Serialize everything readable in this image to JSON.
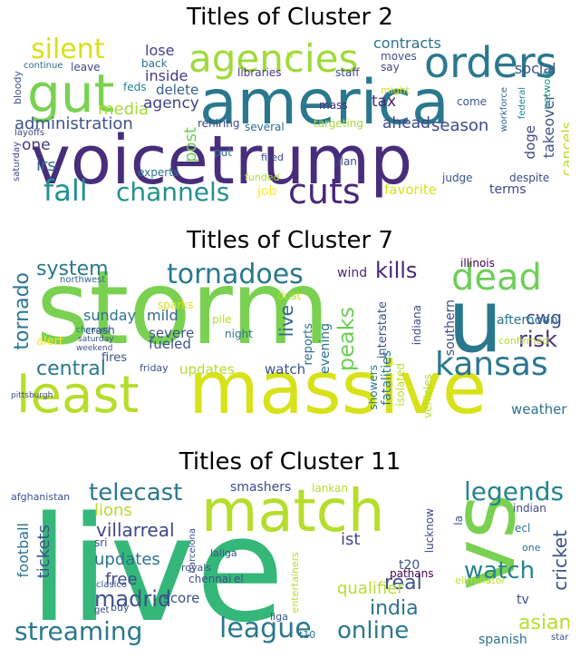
{
  "clusters": [
    {
      "title": "Titles of Cluster 2",
      "words": [
        "america",
        "voicetrump",
        "gut",
        "agencies",
        "orders",
        "silent",
        "cuts",
        "channels",
        "fall",
        "administration",
        "media",
        "agency",
        "inside",
        "delete",
        "post",
        "lose",
        "contracts",
        "social",
        "season",
        "takeover",
        "cancels",
        "doge",
        "network",
        "federal",
        "workforce",
        "tax",
        "ahead",
        "irs",
        "one",
        "several",
        "rehiring",
        "targeting",
        "fired",
        "funded",
        "experts",
        "job",
        "terms",
        "despite",
        "judge",
        "plan",
        "favorite",
        "moves",
        "say",
        "might",
        "come",
        "mass",
        "staff",
        "libraries",
        "back",
        "feds",
        "leave",
        "continue",
        "bloody",
        "layoffs",
        "saturday",
        "put",
        "u"
      ]
    },
    {
      "title": "Titles of Cluster 7",
      "words": [
        "storm",
        "massive",
        "least",
        "u",
        "dead",
        "kansas",
        "tornadoes",
        "system",
        "kills",
        "tornado",
        "risk",
        "central",
        "peaks",
        "cwg",
        "live",
        "sunday",
        "mild",
        "severe",
        "fueled",
        "updates",
        "watch",
        "sparks",
        "crash",
        "alert",
        "fires",
        "dust",
        "pile",
        "night",
        "evening",
        "reports",
        "interstate",
        "fatalities",
        "indiana",
        "southern",
        "afternoon",
        "isolated",
        "vehicles",
        "showers",
        "weather",
        "confirmed",
        "wind",
        "illinois",
        "northwest",
        "chances",
        "saturday",
        "weekend",
        "friday",
        "pittsburgh"
      ]
    },
    {
      "title": "Titles of Cluster 11",
      "words": [
        "live",
        "vs",
        "match",
        "league",
        "streaming",
        "online",
        "india",
        "watch",
        "legends",
        "telecast",
        "real",
        "madrid",
        "asian",
        "cricket",
        "lions",
        "villarreal",
        "updates",
        "free",
        "tickets",
        "football",
        "score",
        "qualifier",
        "ist",
        "t20",
        "lucknow",
        "spanish",
        "tv",
        "chennai",
        "barcelona",
        "sri",
        "clasico",
        "laliga",
        "royals",
        "el",
        "smashers",
        "lankan",
        "afghanistan",
        "indian",
        "ecl",
        "eliminator",
        "pathans",
        "liga",
        "buy",
        "get",
        "entertainers",
        "stars",
        "t10",
        "la",
        "one"
      ]
    }
  ]
}
